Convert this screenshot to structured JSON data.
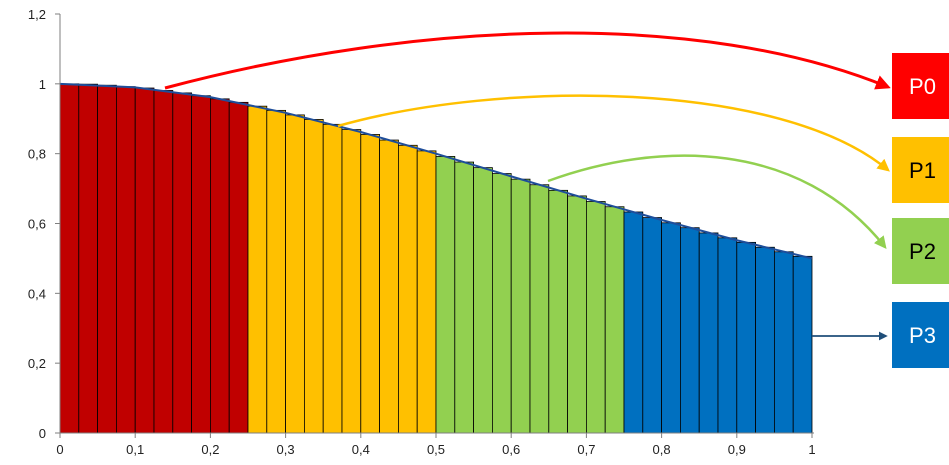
{
  "chart_data": {
    "type": "bar",
    "title": "",
    "xlabel": "",
    "ylabel": "",
    "xlim": [
      0,
      1
    ],
    "ylim": [
      0,
      1.2
    ],
    "x_tick_labels": [
      "0",
      "0,1",
      "0,2",
      "0,3",
      "0,4",
      "0,5",
      "0,6",
      "0,7",
      "0,8",
      "0,9",
      "1"
    ],
    "y_tick_labels": [
      "0",
      "0,2",
      "0,4",
      "0,6",
      "0,8",
      "1",
      "1,2"
    ],
    "bar_count": 40,
    "bar_width": 0.025,
    "bars": [
      {
        "x": 0.0125,
        "value": 1.0
      },
      {
        "x": 0.0375,
        "value": 0.999
      },
      {
        "x": 0.0625,
        "value": 0.996
      },
      {
        "x": 0.0875,
        "value": 0.992
      },
      {
        "x": 0.1125,
        "value": 0.988
      },
      {
        "x": 0.1375,
        "value": 0.981
      },
      {
        "x": 0.1625,
        "value": 0.974
      },
      {
        "x": 0.1875,
        "value": 0.966
      },
      {
        "x": 0.2125,
        "value": 0.957
      },
      {
        "x": 0.2375,
        "value": 0.947
      },
      {
        "x": 0.2625,
        "value": 0.936
      },
      {
        "x": 0.2875,
        "value": 0.924
      },
      {
        "x": 0.3125,
        "value": 0.911
      },
      {
        "x": 0.3375,
        "value": 0.898
      },
      {
        "x": 0.3625,
        "value": 0.884
      },
      {
        "x": 0.3875,
        "value": 0.869
      },
      {
        "x": 0.4125,
        "value": 0.855
      },
      {
        "x": 0.4375,
        "value": 0.839
      },
      {
        "x": 0.4625,
        "value": 0.824
      },
      {
        "x": 0.4875,
        "value": 0.808
      },
      {
        "x": 0.5125,
        "value": 0.792
      },
      {
        "x": 0.5375,
        "value": 0.776
      },
      {
        "x": 0.5625,
        "value": 0.76
      },
      {
        "x": 0.5875,
        "value": 0.743
      },
      {
        "x": 0.6125,
        "value": 0.727
      },
      {
        "x": 0.6375,
        "value": 0.711
      },
      {
        "x": 0.6625,
        "value": 0.695
      },
      {
        "x": 0.6875,
        "value": 0.679
      },
      {
        "x": 0.7125,
        "value": 0.663
      },
      {
        "x": 0.7375,
        "value": 0.648
      },
      {
        "x": 0.7625,
        "value": 0.633
      },
      {
        "x": 0.7875,
        "value": 0.617
      },
      {
        "x": 0.8125,
        "value": 0.602
      },
      {
        "x": 0.8375,
        "value": 0.588
      },
      {
        "x": 0.8625,
        "value": 0.573
      },
      {
        "x": 0.8875,
        "value": 0.559
      },
      {
        "x": 0.9125,
        "value": 0.546
      },
      {
        "x": 0.9375,
        "value": 0.532
      },
      {
        "x": 0.9625,
        "value": 0.519
      },
      {
        "x": 0.9875,
        "value": 0.506
      }
    ],
    "curve": {
      "color": "#1f4e9a",
      "points": [
        [
          0,
          1.0
        ],
        [
          0.1,
          0.99
        ],
        [
          0.2,
          0.962
        ],
        [
          0.3,
          0.917
        ],
        [
          0.4,
          0.862
        ],
        [
          0.5,
          0.8
        ],
        [
          0.6,
          0.735
        ],
        [
          0.7,
          0.671
        ],
        [
          0.8,
          0.61
        ],
        [
          0.9,
          0.552
        ],
        [
          1.0,
          0.5
        ]
      ]
    },
    "segments": [
      {
        "label": "P0",
        "x_range": [
          0,
          0.25
        ],
        "color": "#c00000",
        "box_color": "#ff0000",
        "text_color": "#ffffff",
        "arrow_color": "#ff0000"
      },
      {
        "label": "P1",
        "x_range": [
          0.25,
          0.5
        ],
        "color": "#ffc000",
        "box_color": "#ffc000",
        "text_color": "#000000",
        "arrow_color": "#ffc000"
      },
      {
        "label": "P2",
        "x_range": [
          0.5,
          0.75
        ],
        "color": "#92d050",
        "box_color": "#92d050",
        "text_color": "#000000",
        "arrow_color": "#92d050"
      },
      {
        "label": "P3",
        "x_range": [
          0.75,
          1.0
        ],
        "color": "#0070c0",
        "box_color": "#0070c0",
        "text_color": "#ffffff",
        "arrow_color": "#1f4e79"
      }
    ],
    "grid": false,
    "legend": "right"
  }
}
